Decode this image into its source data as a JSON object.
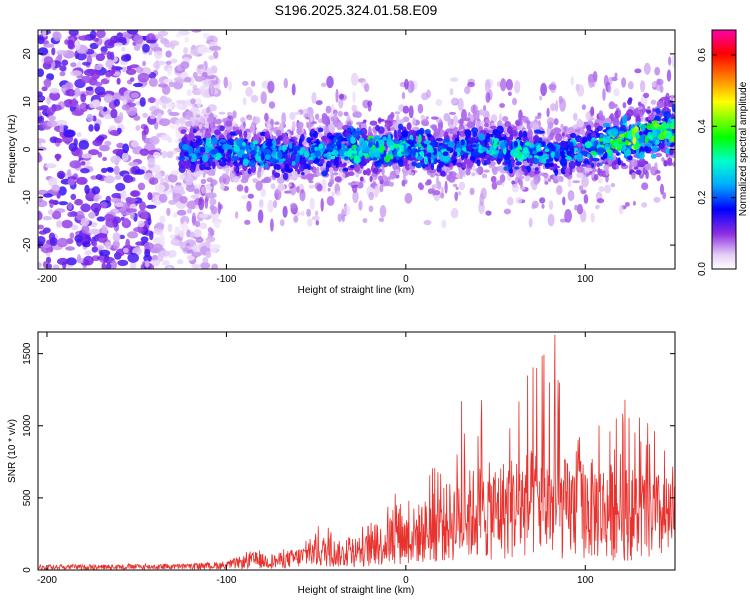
{
  "figure": {
    "title": "S196.2025.324.01.58.E09"
  },
  "colors": {
    "snr_line": "#e8322e",
    "axes": "#000000",
    "background": "#ffffff"
  },
  "chart_data": [
    {
      "type": "heatmap",
      "xlabel": "Height of straight line (km)",
      "ylabel": "Frequency (Hz)",
      "xlim": [
        -205,
        150
      ],
      "ylim": [
        -25,
        25
      ],
      "x_ticks": [
        -200,
        -100,
        0,
        100
      ],
      "y_ticks": [
        -20,
        -10,
        0,
        10,
        20
      ],
      "colorbar": {
        "label": "Normalized spectral amplitude",
        "range": [
          0.0,
          0.67
        ],
        "ticks": [
          0.0,
          0.2,
          0.4,
          0.6
        ],
        "colormap": "rainbow (white/violet low → blue → cyan → green → yellow → orange → red → magenta high)"
      },
      "ridge": {
        "description": "dense band along frequency ≈ 0 Hz rising toward ≈ 4 Hz at right",
        "x": [
          -125,
          -100,
          -80,
          -60,
          -40,
          -20,
          0,
          20,
          40,
          60,
          80,
          100,
          120,
          145
        ],
        "center_freq": [
          0,
          0,
          -1,
          -1,
          0,
          0,
          0.5,
          -1,
          1,
          0,
          -1,
          0,
          2,
          4
        ],
        "peak_amplitude": [
          0.25,
          0.32,
          0.3,
          0.28,
          0.32,
          0.4,
          0.36,
          0.3,
          0.3,
          0.35,
          0.3,
          0.3,
          0.5,
          0.42
        ]
      },
      "noise_region": {
        "x_range": [
          -205,
          -120
        ],
        "freq_range": [
          -25,
          25
        ],
        "typical_amplitude": 0.08
      }
    },
    {
      "type": "line",
      "xlabel": "Height of straight line (km)",
      "ylabel": "SNR (10 * v/v)",
      "xlim": [
        -205,
        150
      ],
      "ylim": [
        0,
        1650
      ],
      "x_ticks": [
        -200,
        -100,
        0,
        100
      ],
      "y_ticks": [
        0,
        500,
        1000,
        1500
      ],
      "envelope": {
        "x": [
          -205,
          -120,
          -100,
          -85,
          -75,
          -60,
          -45,
          -35,
          -25,
          -15,
          -5,
          0,
          10,
          20,
          30,
          40,
          50,
          60,
          70,
          80,
          90,
          100,
          110,
          120,
          130,
          140,
          150
        ],
        "typical": [
          20,
          25,
          35,
          70,
          60,
          90,
          140,
          110,
          130,
          170,
          260,
          230,
          280,
          330,
          380,
          420,
          430,
          460,
          480,
          470,
          440,
          450,
          430,
          420,
          400,
          390,
          350
        ],
        "max": [
          40,
          45,
          60,
          150,
          120,
          180,
          350,
          250,
          300,
          380,
          580,
          500,
          700,
          800,
          1000,
          1200,
          1350,
          1300,
          1400,
          1630,
          1150,
          1150,
          1100,
          1180,
          1100,
          1000,
          680
        ]
      },
      "notable_peaks": [
        {
          "x": 83,
          "y": 1630
        },
        {
          "x": 73,
          "y": 1400
        },
        {
          "x": 122,
          "y": 1180
        },
        {
          "x": 31,
          "y": 1170
        }
      ]
    }
  ]
}
